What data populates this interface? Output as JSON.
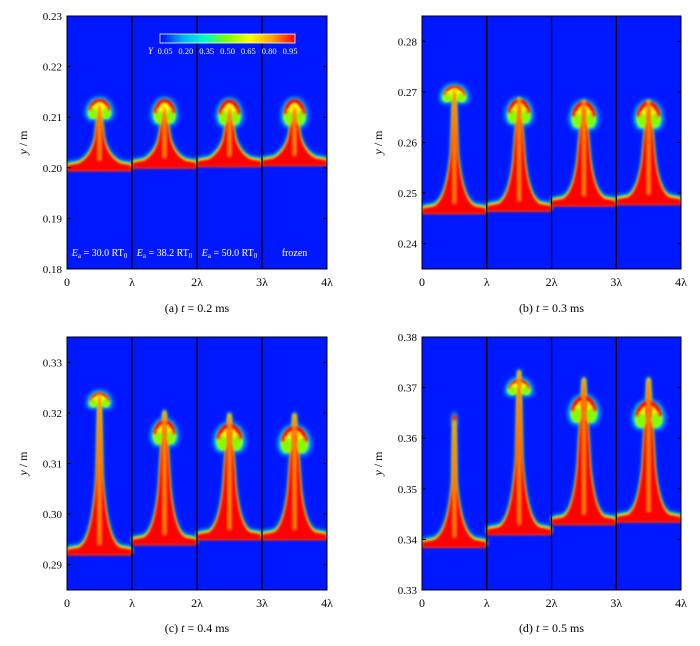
{
  "colors": {
    "background_phase": "#0018ff",
    "heavy_phase": "#ff0000",
    "interface_ramp": [
      "#0000ff",
      "#00b0ff",
      "#00ffc0",
      "#80ff00",
      "#ffff00",
      "#ffa000",
      "#ff0000"
    ]
  },
  "chart_data": [
    {
      "type": "heatmap",
      "caption_prefix": "(a) ",
      "caption_t": "t",
      "caption_suffix": " = 0.2 ms",
      "ylabel_italic": "y",
      "ylabel_unit": " / m",
      "ylim": [
        0.18,
        0.23
      ],
      "y_ticks": [
        "0.18",
        "0.19",
        "0.20",
        "0.21",
        "0.22",
        "0.23"
      ],
      "x_ticks": [
        "0",
        "λ",
        "2λ",
        "3λ",
        "4λ"
      ],
      "colorbar": {
        "label": "Y",
        "ticks": [
          "0.05",
          "0.20",
          "0.35",
          "0.50",
          "0.65",
          "0.80",
          "0.95"
        ]
      },
      "panel_labels": [
        {
          "E": "E",
          "sub": "a",
          "value": " = 30.0 RT",
          "zero": "0"
        },
        {
          "E": "E",
          "sub": "a",
          "value": " = 38.2 RT",
          "zero": "0"
        },
        {
          "E": "E",
          "sub": "a",
          "value": " = 50.0 RT",
          "zero": "0"
        },
        {
          "plain": "frozen"
        }
      ],
      "cases": [
        {
          "base": 0.2015,
          "stem_top": 0.2125,
          "cap_y": 0.211,
          "cap_w": 0.4,
          "roll": 0.55
        },
        {
          "base": 0.202,
          "stem_top": 0.212,
          "cap_y": 0.2105,
          "cap_w": 0.38,
          "roll": 0.85
        },
        {
          "base": 0.2023,
          "stem_top": 0.212,
          "cap_y": 0.2103,
          "cap_w": 0.38,
          "roll": 0.9
        },
        {
          "base": 0.2025,
          "stem_top": 0.2122,
          "cap_y": 0.2103,
          "cap_w": 0.38,
          "roll": 0.95
        }
      ]
    },
    {
      "type": "heatmap",
      "caption_prefix": "(b) ",
      "caption_t": "t",
      "caption_suffix": " = 0.3 ms",
      "ylabel_italic": "y",
      "ylabel_unit": " / m",
      "ylim": [
        0.235,
        0.285
      ],
      "y_ticks": [
        "0.24",
        "0.25",
        "0.26",
        "0.27",
        "0.28"
      ],
      "x_ticks": [
        "0",
        "λ",
        "2λ",
        "3λ",
        "4λ"
      ],
      "cases": [
        {
          "base": 0.248,
          "stem_top": 0.2705,
          "cap_y": 0.269,
          "cap_w": 0.42,
          "roll": 0.3
        },
        {
          "base": 0.2485,
          "stem_top": 0.269,
          "cap_y": 0.2655,
          "cap_w": 0.4,
          "roll": 0.85
        },
        {
          "base": 0.2495,
          "stem_top": 0.2685,
          "cap_y": 0.2648,
          "cap_w": 0.42,
          "roll": 1.0
        },
        {
          "base": 0.2498,
          "stem_top": 0.2685,
          "cap_y": 0.2648,
          "cap_w": 0.42,
          "roll": 1.0
        }
      ]
    },
    {
      "type": "heatmap",
      "caption_prefix": "(c) ",
      "caption_t": "t",
      "caption_suffix": " = 0.4 ms",
      "ylabel_italic": "y",
      "ylabel_unit": " / m",
      "ylim": [
        0.285,
        0.335
      ],
      "y_ticks": [
        "0.29",
        "0.30",
        "0.31",
        "0.32",
        "0.33"
      ],
      "x_ticks": [
        "0",
        "λ",
        "2λ",
        "3λ",
        "4λ"
      ],
      "cases": [
        {
          "base": 0.294,
          "stem_top": 0.3235,
          "cap_y": 0.322,
          "cap_w": 0.36,
          "roll": 0.2
        },
        {
          "base": 0.296,
          "stem_top": 0.3205,
          "cap_y": 0.3155,
          "cap_w": 0.4,
          "roll": 0.85
        },
        {
          "base": 0.297,
          "stem_top": 0.32,
          "cap_y": 0.3145,
          "cap_w": 0.46,
          "roll": 1.0
        },
        {
          "base": 0.297,
          "stem_top": 0.32,
          "cap_y": 0.314,
          "cap_w": 0.48,
          "roll": 1.0
        }
      ]
    },
    {
      "type": "heatmap",
      "caption_prefix": "(d) ",
      "caption_t": "t",
      "caption_suffix": " = 0.5 ms",
      "ylabel_italic": "y",
      "ylabel_unit": " / m",
      "ylim": [
        0.33,
        0.38
      ],
      "y_ticks": [
        "0.33",
        "0.34",
        "0.35",
        "0.36",
        "0.37",
        "0.38"
      ],
      "x_ticks": [
        "0",
        "λ",
        "2λ",
        "3λ",
        "4λ"
      ],
      "cases": [
        {
          "base": 0.3405,
          "stem_top": 0.3635,
          "cap_y": 0.363,
          "cap_w": 0.05,
          "roll": 0.0
        },
        {
          "base": 0.343,
          "stem_top": 0.3735,
          "cap_y": 0.3695,
          "cap_w": 0.4,
          "roll": 0.25
        },
        {
          "base": 0.345,
          "stem_top": 0.372,
          "cap_y": 0.365,
          "cap_w": 0.46,
          "roll": 1.0
        },
        {
          "base": 0.3455,
          "stem_top": 0.372,
          "cap_y": 0.364,
          "cap_w": 0.48,
          "roll": 1.0
        }
      ]
    }
  ]
}
